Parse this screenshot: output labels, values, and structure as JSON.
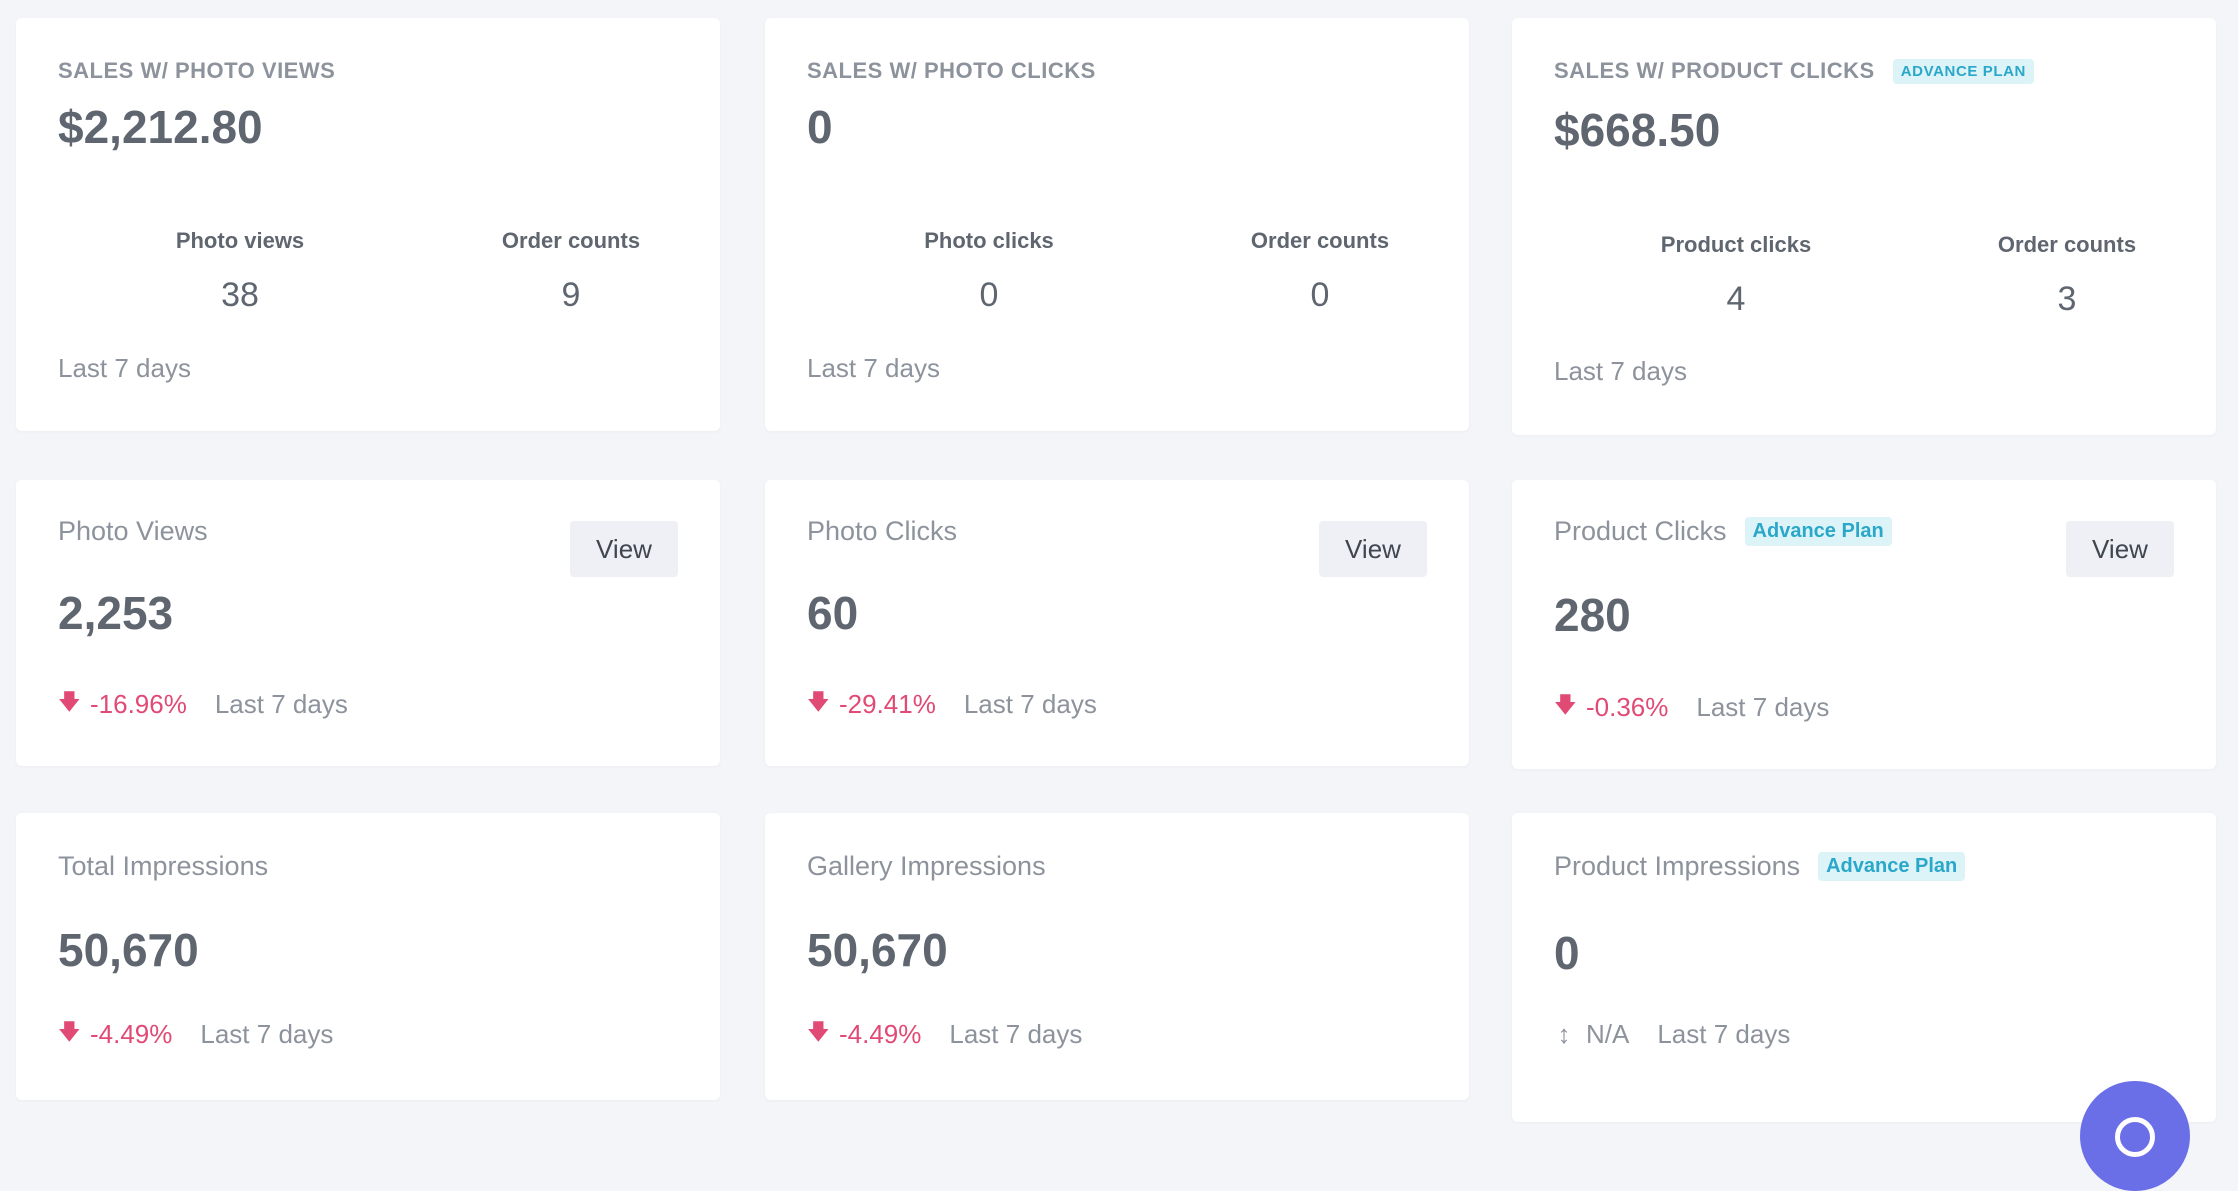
{
  "sales_cards": [
    {
      "caption": "SALES W/ PHOTO VIEWS",
      "badge": "",
      "amount": "$2,212.80",
      "stat1_label": "Photo views",
      "stat1_value": "38",
      "stat2_label": "Order counts",
      "stat2_value": "9",
      "period": "Last 7 days"
    },
    {
      "caption": "SALES W/ PHOTO CLICKS",
      "badge": "",
      "amount": "0",
      "stat1_label": "Photo clicks",
      "stat1_value": "0",
      "stat2_label": "Order counts",
      "stat2_value": "0",
      "period": "Last 7 days"
    },
    {
      "caption": "SALES W/ PRODUCT CLICKS",
      "badge": "ADVANCE PLAN",
      "amount": "$668.50",
      "stat1_label": "Product clicks",
      "stat1_value": "4",
      "stat2_label": "Order counts",
      "stat2_value": "3",
      "period": "Last 7 days"
    }
  ],
  "metric_cards": [
    {
      "title": "Photo Views",
      "badge": "",
      "button": "View",
      "value": "2,253",
      "change": "-16.96%",
      "period": "Last 7 days"
    },
    {
      "title": "Photo Clicks",
      "badge": "",
      "button": "View",
      "value": "60",
      "change": "-29.41%",
      "period": "Last 7 days"
    },
    {
      "title": "Product Clicks",
      "badge": "Advance Plan",
      "button": "View",
      "value": "280",
      "change": "-0.36%",
      "period": "Last 7 days"
    }
  ],
  "impression_cards": [
    {
      "title": "Total Impressions",
      "badge": "",
      "value": "50,670",
      "change": "-4.49%",
      "period": "Last 7 days"
    },
    {
      "title": "Gallery Impressions",
      "badge": "",
      "value": "50,670",
      "change": "-4.49%",
      "period": "Last 7 days"
    },
    {
      "title": "Product Impressions",
      "badge": "Advance Plan",
      "value": "0",
      "change": "N/A",
      "period": "Last 7 days"
    }
  ],
  "icons": {
    "decrease": "arrow-down-icon",
    "neutral": "arrow-up-down-icon",
    "chat": "chat-icon"
  },
  "colors": {
    "negative": "#e04a74",
    "badge_bg": "#dcf3f8",
    "badge_text": "#2aa7c9",
    "fab": "#6a6fe8"
  }
}
